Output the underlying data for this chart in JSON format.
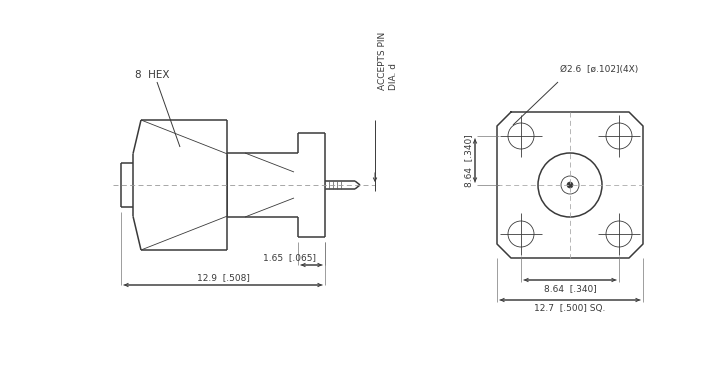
{
  "bg_color": "#ffffff",
  "line_color": "#3a3a3a",
  "lw_main": 1.1,
  "lw_thin": 0.6,
  "lw_dim": 0.7,
  "lw_ext": 0.5,
  "font_size": 7.5,
  "font_size_small": 6.5,
  "annotations": {
    "hex_label": "8  HEX",
    "accepts_pin_1": "ACCEPTS PIN",
    "accepts_pin_2": "DIA. d",
    "dim_165": "1.65  [.065]",
    "dim_129": "12.9  [.508]",
    "dim_phi": "Ø2.6  [ø.102](4X)",
    "dim_864_v": "8.64  [.340]",
    "dim_864_h": "8.64  [.340]",
    "dim_127": "12.7  [.500] SQ."
  }
}
